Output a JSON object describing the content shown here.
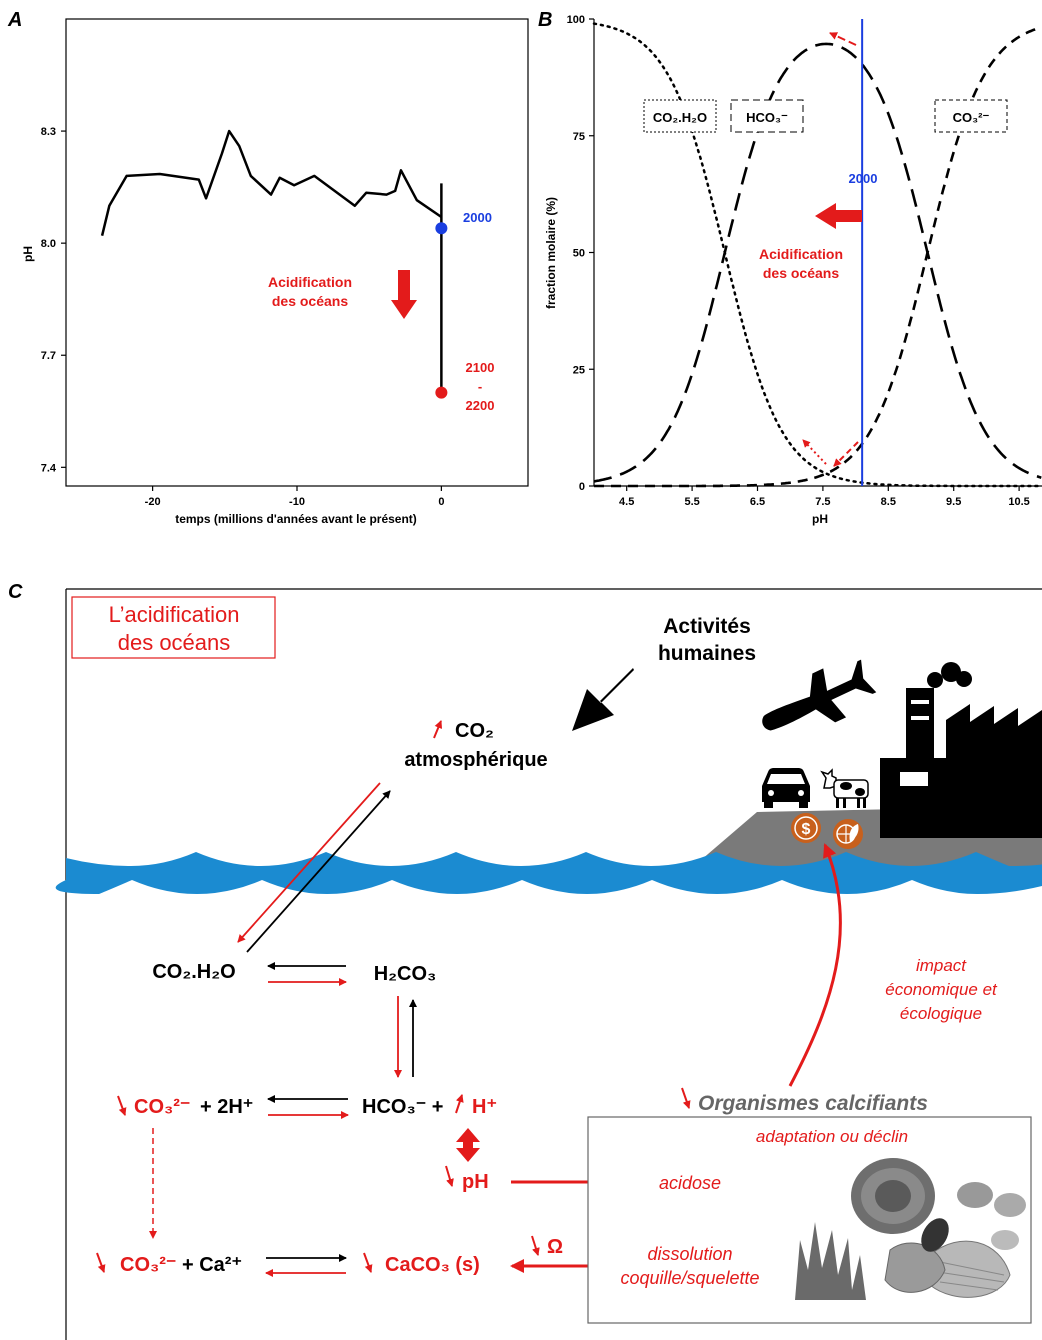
{
  "panels": {
    "a": {
      "letter": "A",
      "y_label": "pH",
      "x_label": "temps (millions d'années avant le présent)",
      "y_ticks": [
        "8.3",
        "8.0",
        "7.7",
        "7.4"
      ],
      "x_ticks": [
        "-20",
        "-10",
        "0"
      ],
      "marker_2000": "2000",
      "marker_2100_line1": "2100",
      "marker_2100_dash": "-",
      "marker_2100_line2": "2200",
      "acid_line1": "Acidification",
      "acid_line2": "des océans"
    },
    "b": {
      "letter": "B",
      "y_label": "fraction molaire (%)",
      "x_label": "pH",
      "y_ticks": [
        "100",
        "75",
        "50",
        "25",
        "0"
      ],
      "x_ticks": [
        "4.5",
        "5.5",
        "6.5",
        "7.5",
        "8.5",
        "9.5",
        "10.5"
      ],
      "species_co2": "CO₂.H₂O",
      "species_hco3": "HCO₃⁻",
      "species_co3": "CO₃²⁻",
      "year_2000": "2000",
      "acid_line1": "Acidification",
      "acid_line2": "des océans"
    },
    "c": {
      "letter": "C",
      "title_line1": "L’acidification",
      "title_line2": "des océans",
      "activities_line1": "Activités",
      "activities_line2": "humaines",
      "co2_atm_line1": "CO₂",
      "co2_atm_line2": "atmosphérique",
      "co2_h2o": "CO₂.H₂O",
      "h2co3": "H₂CO₃",
      "co3_2h_red": "CO₃²⁻",
      "co3_2h_black": "+ 2H⁺",
      "hco3_black": "HCO₃⁻ +",
      "h_plus": "H⁺",
      "ph_label": "pH",
      "co3_ca_red": "CO₃²⁻",
      "co3_ca_black": "+ Ca²⁺",
      "caco3": "CaCO₃ (s)",
      "omega": "Ω",
      "acidose": "acidose",
      "dissolution_line1": "dissolution",
      "dissolution_line2": "coquille/squelette",
      "organismes": "Organismes calcifiants",
      "adaptation": "adaptation ou déclin",
      "impact_line1": "impact",
      "impact_line2": "économique et",
      "impact_line3": "écologique"
    }
  },
  "colors": {
    "red": "#e31b1b",
    "blue": "#1a3ee0",
    "ocean": "#1b8bd1",
    "land": "#7a7a7a",
    "icon_orange": "#c8601c"
  },
  "chart_data": [
    {
      "type": "line",
      "panel": "A",
      "xlabel": "temps (millions d'années avant le présent)",
      "ylabel": "pH",
      "xlim": [
        -26,
        6
      ],
      "ylim": [
        7.35,
        8.6
      ],
      "series": [
        {
          "x": [
            -23.5,
            -23,
            -21.8,
            -19.5,
            -16.8,
            -16.3,
            -15.2,
            -14.7,
            -14,
            -13.2,
            -11.8,
            -11.2,
            -10.2,
            -8.8,
            -6,
            -5.2,
            -3.8,
            -3.2,
            -2.8,
            -1.7,
            0
          ],
          "y": [
            8.02,
            8.1,
            8.18,
            8.185,
            8.17,
            8.12,
            8.24,
            8.3,
            8.26,
            8.18,
            8.13,
            8.175,
            8.155,
            8.18,
            8.1,
            8.135,
            8.13,
            8.14,
            8.195,
            8.115,
            8.07
          ]
        }
      ],
      "markers": [
        {
          "x": 0,
          "y": 8.04,
          "label": "2000"
        },
        {
          "x": 0,
          "y": 7.6,
          "label": "2100 - 2200"
        }
      ],
      "projection_range": [
        7.6,
        8.16
      ]
    },
    {
      "type": "line",
      "panel": "B",
      "xlabel": "pH",
      "ylabel": "fraction molaire (%)",
      "xlim": [
        4,
        10.85
      ],
      "ylim": [
        0,
        100
      ],
      "pKa1": 6.0,
      "pKa2": 9.1,
      "series_curves": [
        "CO₂.H₂O",
        "HCO₃⁻",
        "CO₃²⁻"
      ],
      "vertical_line": {
        "x": 8.1,
        "label": "2000"
      }
    }
  ]
}
